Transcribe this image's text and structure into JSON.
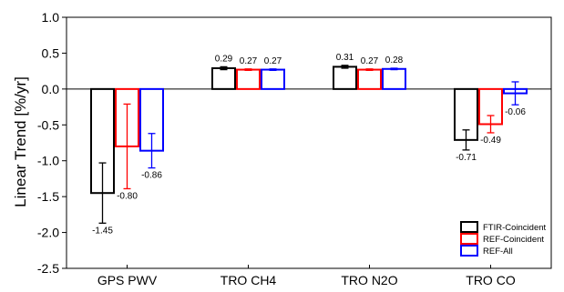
{
  "chart_data": {
    "type": "bar",
    "categories": [
      "GPS PWV",
      "TRO CH4",
      "TRO N2O",
      "TRO CO"
    ],
    "series": [
      {
        "name": "FTIR-Coincident",
        "color": "#000000",
        "values": [
          -1.45,
          0.29,
          0.31,
          -0.71
        ],
        "labels": [
          "-1.45",
          "0.29",
          "0.31",
          "-0.71"
        ],
        "error": [
          0.42,
          0.02,
          0.02,
          0.14
        ]
      },
      {
        "name": "REF-Coincident",
        "color": "#ff0000",
        "values": [
          -0.8,
          0.27,
          0.27,
          -0.49
        ],
        "labels": [
          "-0.80",
          "0.27",
          "0.27",
          "-0.49"
        ],
        "error": [
          0.59,
          0.01,
          0.01,
          0.12
        ]
      },
      {
        "name": "REF-All",
        "color": "#0000ff",
        "values": [
          -0.86,
          0.27,
          0.28,
          -0.06
        ],
        "labels": [
          "-0.86",
          "0.27",
          "0.28",
          "-0.06"
        ],
        "error": [
          0.24,
          0.01,
          0.01,
          0.16
        ]
      }
    ],
    "ylabel": "Linear Trend [%/yr]",
    "xlabel": "",
    "ylim": [
      -2.5,
      1.0
    ],
    "yticks": [
      "1.0",
      "0.5",
      "0.0",
      "-0.5",
      "-1.0",
      "-1.5",
      "-2.0",
      "-2.5"
    ],
    "grid": false,
    "legend_position": "bottom-right"
  }
}
